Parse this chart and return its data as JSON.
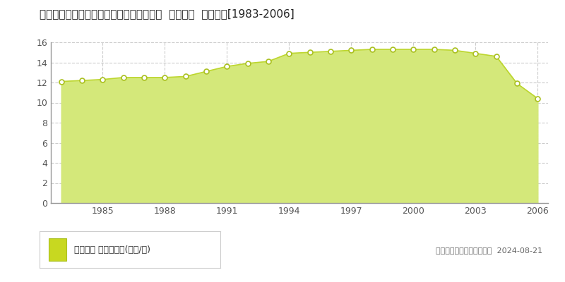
{
  "title": "新潟県五泉市三本木２丁目２４１番４５外  地価公示  地価推移[1983-2006]",
  "years": [
    1983,
    1984,
    1985,
    1986,
    1987,
    1988,
    1989,
    1990,
    1991,
    1992,
    1993,
    1994,
    1995,
    1996,
    1997,
    1998,
    1999,
    2000,
    2001,
    2002,
    2003,
    2004,
    2005,
    2006
  ],
  "values": [
    12.1,
    12.2,
    12.3,
    12.5,
    12.5,
    12.5,
    12.6,
    13.1,
    13.6,
    13.9,
    14.1,
    14.9,
    15.0,
    15.1,
    15.2,
    15.3,
    15.3,
    15.3,
    15.3,
    15.2,
    14.9,
    14.6,
    11.9,
    10.4
  ],
  "ylim": [
    0,
    16
  ],
  "yticks": [
    0,
    2,
    4,
    6,
    8,
    10,
    12,
    14,
    16
  ],
  "xlim": [
    1982.5,
    2006.5
  ],
  "xtick_years": [
    1985,
    1988,
    1991,
    1994,
    1997,
    2000,
    2003,
    2006
  ],
  "line_color": "#bdd62e",
  "fill_color": "#d4e87a",
  "marker_face_color": "white",
  "marker_edge_color": "#aac020",
  "background_color": "#ffffff",
  "plot_bg_color": "#ffffff",
  "grid_color": "#cccccc",
  "axis_color": "#999999",
  "tick_label_color": "#555555",
  "legend_label": "地価公示 平均坪単価(万円/坪)",
  "legend_square_color": "#c8d820",
  "copyright_text": "（Ｃ）土地価格ドットコム  2024-08-21",
  "title_fontsize": 11,
  "tick_fontsize": 9,
  "legend_fontsize": 9
}
